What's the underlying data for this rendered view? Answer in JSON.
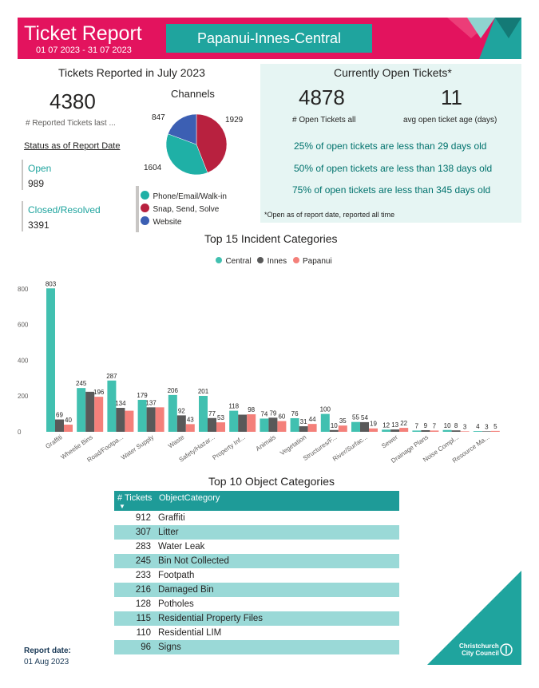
{
  "header": {
    "title": "Ticket Report",
    "date_range": "01 07 2023 - 31 07 2023",
    "ward": "Papanui-Innes-Central",
    "brand_color": "#e3135e",
    "accent_color": "#1fa49e"
  },
  "reported": {
    "heading": "Tickets Reported in July 2023",
    "total": "4380",
    "total_label": "# Reported Tickets last ...",
    "status_heading": "Status as of Report Date",
    "open_label": "Open",
    "open_value": "989",
    "closed_label": "Closed/Resolved",
    "closed_value": "3391"
  },
  "channels": {
    "title": "Channels",
    "slices": [
      {
        "name": "Phone/Email/Walk-in",
        "value": 1604,
        "label": "1604",
        "color": "#1fb0a6"
      },
      {
        "name": "Snap, Send, Solve",
        "value": 1929,
        "label": "1929",
        "color": "#b8213f"
      },
      {
        "name": "Website",
        "value": 847,
        "label": "847",
        "color": "#3c5fb3"
      }
    ]
  },
  "open": {
    "heading": "Currently Open Tickets*",
    "count": "4878",
    "count_label": "# Open Tickets all",
    "avg_age": "11",
    "avg_age_label": "avg open ticket age (days)",
    "p25": "25% of open tickets are less than 29 days old",
    "p50": "50% of open tickets are less than 138 days old",
    "p75": "75% of open tickets are less than 345 days old",
    "footnote": "*Open as of report date, reported all time"
  },
  "chart_data": {
    "type": "bar",
    "title": "Top 15 Incident Categories",
    "categories": [
      "Graffiti",
      "Wheelie Bins",
      "Road/Footpa...",
      "Water Supply",
      "Waste",
      "Safety/Hazar...",
      "Property Inf...",
      "Animals",
      "Vegetation",
      "Structures/F...",
      "River/Surfac...",
      "Sewer",
      "Drainage Plans",
      "Noise Compl...",
      "Resource Ma..."
    ],
    "series": [
      {
        "name": "Central",
        "color": "#41c0b0",
        "values": [
          803,
          245,
          287,
          179,
          206,
          201,
          118,
          74,
          76,
          100,
          55,
          12,
          7,
          10,
          4
        ]
      },
      {
        "name": "Innes",
        "color": "#595959",
        "values": [
          69,
          224,
          134,
          137,
          92,
          77,
          96,
          79,
          31,
          10,
          54,
          13,
          9,
          8,
          3
        ]
      },
      {
        "name": "Papanui",
        "color": "#f4807a",
        "values": [
          40,
          196,
          118,
          137,
          43,
          53,
          98,
          60,
          44,
          35,
          19,
          22,
          7,
          3,
          5
        ]
      }
    ],
    "data_labels": [
      [
        "803",
        "69",
        "40"
      ],
      [
        "245",
        "",
        "196"
      ],
      [
        "287",
        "134",
        ""
      ],
      [
        "179",
        "137",
        ""
      ],
      [
        "206",
        "92",
        "43"
      ],
      [
        "201",
        "77",
        "53"
      ],
      [
        "118",
        "",
        "98"
      ],
      [
        "74",
        "79",
        "60"
      ],
      [
        "76",
        "31",
        "44"
      ],
      [
        "100",
        "10",
        "35"
      ],
      [
        "55",
        "54",
        "19"
      ],
      [
        "12",
        "13",
        "22"
      ],
      [
        "7",
        "9",
        "7"
      ],
      [
        "10",
        "8",
        "3"
      ],
      [
        "4",
        "3",
        "5"
      ]
    ],
    "yticks": [
      "0",
      "200",
      "400",
      "600",
      "800"
    ],
    "ylim": [
      0,
      840
    ],
    "grid": false,
    "legend_position": "top"
  },
  "objects": {
    "title": "Top 10 Object Categories",
    "col_tickets": "# Tickets",
    "col_category": "ObjectCategory",
    "rows": [
      {
        "tickets": "912",
        "category": "Graffiti"
      },
      {
        "tickets": "307",
        "category": "Litter"
      },
      {
        "tickets": "283",
        "category": "Water Leak"
      },
      {
        "tickets": "245",
        "category": "Bin Not Collected"
      },
      {
        "tickets": "233",
        "category": "Footpath"
      },
      {
        "tickets": "216",
        "category": "Damaged Bin"
      },
      {
        "tickets": "128",
        "category": "Potholes"
      },
      {
        "tickets": "115",
        "category": "Residential Property Files"
      },
      {
        "tickets": "110",
        "category": "Residential LIM"
      },
      {
        "tickets": "96",
        "category": "Signs"
      }
    ]
  },
  "footer": {
    "report_date_label": "Report date:",
    "report_date": "01 Aug 2023",
    "logo_line1": "Christchurch",
    "logo_line2": "City Council"
  }
}
